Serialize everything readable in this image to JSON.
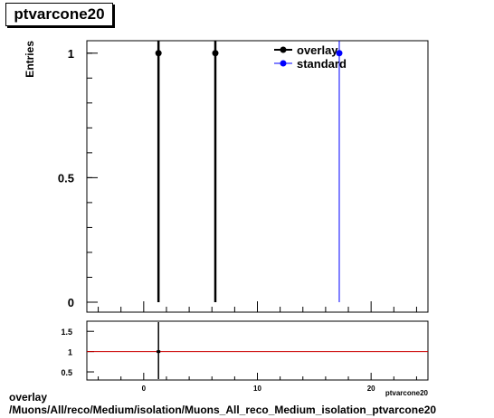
{
  "title": "ptvarcone20",
  "caption_line1": "overlay",
  "caption_line2": "/Muons/All/reco/Medium/isolation/Muons_All_reco_Medium_isolation_ptvarcone20",
  "colors": {
    "overlay": "#000000",
    "standard": "#0000ff",
    "ratio_line": "#cc0000"
  },
  "chart_data": [
    {
      "type": "scatter",
      "ylabel": "Entries",
      "xlim": [
        -5,
        25
      ],
      "ylim": [
        -0.04,
        1.05
      ],
      "y_ticks": [
        0,
        0.5,
        1
      ],
      "y_tick_labels": [
        "0",
        "0.5",
        "1"
      ],
      "legend_position": "top-right",
      "series": [
        {
          "name": "overlay",
          "color": "#000000",
          "x": [
            1.3,
            6.3
          ],
          "y": [
            1,
            1
          ]
        },
        {
          "name": "standard",
          "color": "#0000ff",
          "x": [
            17.2
          ],
          "y": [
            1
          ]
        }
      ]
    },
    {
      "type": "line",
      "xlabel": "ptvarcone20",
      "xlim": [
        -5,
        25
      ],
      "ylim": [
        0.3,
        1.75
      ],
      "x_ticks": [
        0,
        10,
        20
      ],
      "x_tick_labels": [
        "0",
        "10",
        "20"
      ],
      "y_ticks": [
        0.5,
        1,
        1.5
      ],
      "y_tick_labels": [
        "0.5",
        "1",
        "1.5"
      ],
      "reference_y": 1,
      "points": [
        {
          "x": 1.3,
          "y": 1
        }
      ]
    }
  ]
}
